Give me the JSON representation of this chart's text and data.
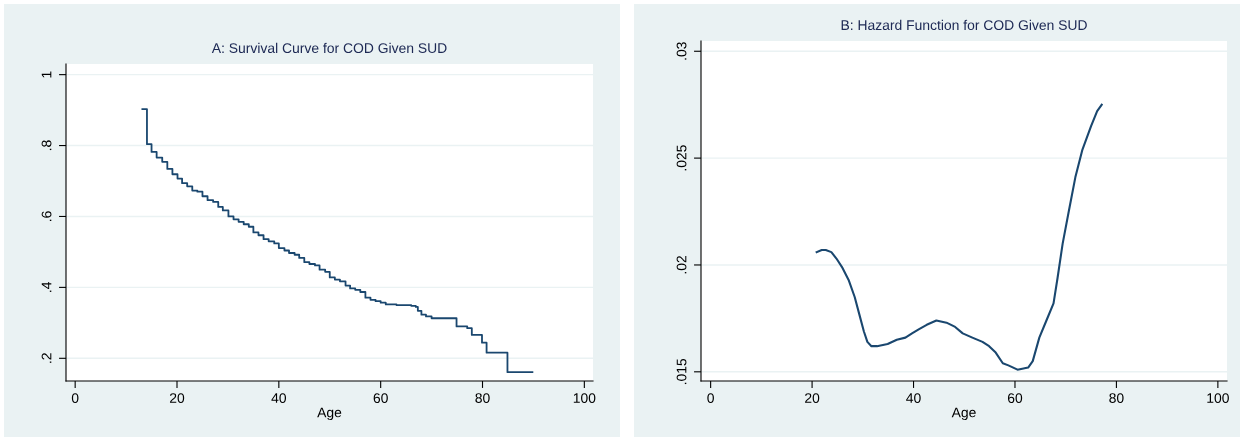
{
  "chart_data": [
    {
      "type": "step",
      "title": "A: Survival Curve for COD Given SUD",
      "xlabel": "Age",
      "xlim": [
        -1.8,
        101.7
      ],
      "xticks": [
        0,
        20,
        40,
        60,
        80,
        100
      ],
      "ylim": [
        0.136,
        1.03
      ],
      "yticks": [
        {
          "value": 0.2,
          "label": ".2"
        },
        {
          "value": 0.4,
          "label": ".4"
        },
        {
          "value": 0.6,
          "label": ".6"
        },
        {
          "value": 0.8,
          "label": ".8"
        },
        {
          "value": 1,
          "label": "1"
        }
      ],
      "grid": "y",
      "legend": false,
      "series": [
        {
          "color": "#1a476f",
          "x": [
            13.2,
            14.1,
            15.0,
            16.0,
            17.1,
            18.1,
            19.1,
            20.1,
            21.0,
            22.0,
            23.0,
            24.0,
            25.0,
            26.0,
            27.1,
            28.1,
            29.0,
            30.1,
            31.1,
            32.1,
            33.1,
            34.1,
            35.0,
            36.0,
            37.0,
            38.0,
            39.1,
            40.0,
            41.1,
            42.0,
            43.1,
            44.0,
            45.0,
            46.0,
            47.1,
            48.0,
            49.1,
            50.0,
            51.0,
            52.0,
            53.1,
            54.0,
            55.0,
            56.0,
            57.0,
            58.0,
            59.0,
            60.0,
            61.0,
            63.1,
            66.0,
            66.9,
            67.3,
            68.0,
            68.9,
            70.0,
            74.9,
            77.0,
            77.9,
            79.9,
            80.8,
            84.9,
            89.8
          ],
          "values": [
            0.903,
            0.804,
            0.782,
            0.766,
            0.754,
            0.734,
            0.719,
            0.707,
            0.694,
            0.685,
            0.673,
            0.67,
            0.657,
            0.646,
            0.641,
            0.627,
            0.617,
            0.6,
            0.592,
            0.585,
            0.578,
            0.571,
            0.555,
            0.547,
            0.536,
            0.53,
            0.524,
            0.511,
            0.504,
            0.497,
            0.492,
            0.483,
            0.471,
            0.466,
            0.462,
            0.45,
            0.444,
            0.428,
            0.422,
            0.417,
            0.405,
            0.397,
            0.393,
            0.387,
            0.371,
            0.365,
            0.361,
            0.357,
            0.352,
            0.35,
            0.348,
            0.345,
            0.334,
            0.323,
            0.318,
            0.313,
            0.29,
            0.285,
            0.266,
            0.244,
            0.216,
            0.161,
            0.161
          ]
        }
      ]
    },
    {
      "type": "line",
      "title": "B: Hazard Function for COD Given SUD",
      "xlabel": "Age",
      "xlim": [
        -1.9,
        101.8
      ],
      "xticks": [
        0,
        20,
        40,
        60,
        80,
        100
      ],
      "ylim": [
        0.01457,
        0.03048
      ],
      "yticks": [
        {
          "value": 0.015,
          "label": ".015"
        },
        {
          "value": 0.02,
          "label": ".02"
        },
        {
          "value": 0.025,
          "label": ".025"
        },
        {
          "value": 0.03,
          "label": ".03"
        }
      ],
      "grid": "y",
      "legend": false,
      "series": [
        {
          "color": "#1a476f",
          "x": [
            20.9,
            21.9,
            22.7,
            23.8,
            24.8,
            25.9,
            27.2,
            28.4,
            29.3,
            30.2,
            30.9,
            31.7,
            32.8,
            34.9,
            36.7,
            38.4,
            39.7,
            41.1,
            42.6,
            44.5,
            46.5,
            48.2,
            49.7,
            51.6,
            53.6,
            54.9,
            56.2,
            57.6,
            58.7,
            60.5,
            62.6,
            63.5,
            64.8,
            66.2,
            67.6,
            68.4,
            69.4,
            70.6,
            71.9,
            73.3,
            75.0,
            76.2,
            77.1
          ],
          "values": [
            0.0206,
            0.0207,
            0.0207,
            0.0206,
            0.0203,
            0.0199,
            0.0193,
            0.0185,
            0.0177,
            0.0169,
            0.0164,
            0.0162,
            0.0162,
            0.0163,
            0.0165,
            0.0166,
            0.0168,
            0.017,
            0.0172,
            0.0174,
            0.0173,
            0.0171,
            0.0168,
            0.0166,
            0.0164,
            0.0162,
            0.0159,
            0.0154,
            0.0153,
            0.0151,
            0.0152,
            0.0155,
            0.0166,
            0.0174,
            0.0182,
            0.0194,
            0.021,
            0.0225,
            0.0241,
            0.0254,
            0.0265,
            0.0272,
            0.0275
          ]
        }
      ]
    }
  ]
}
